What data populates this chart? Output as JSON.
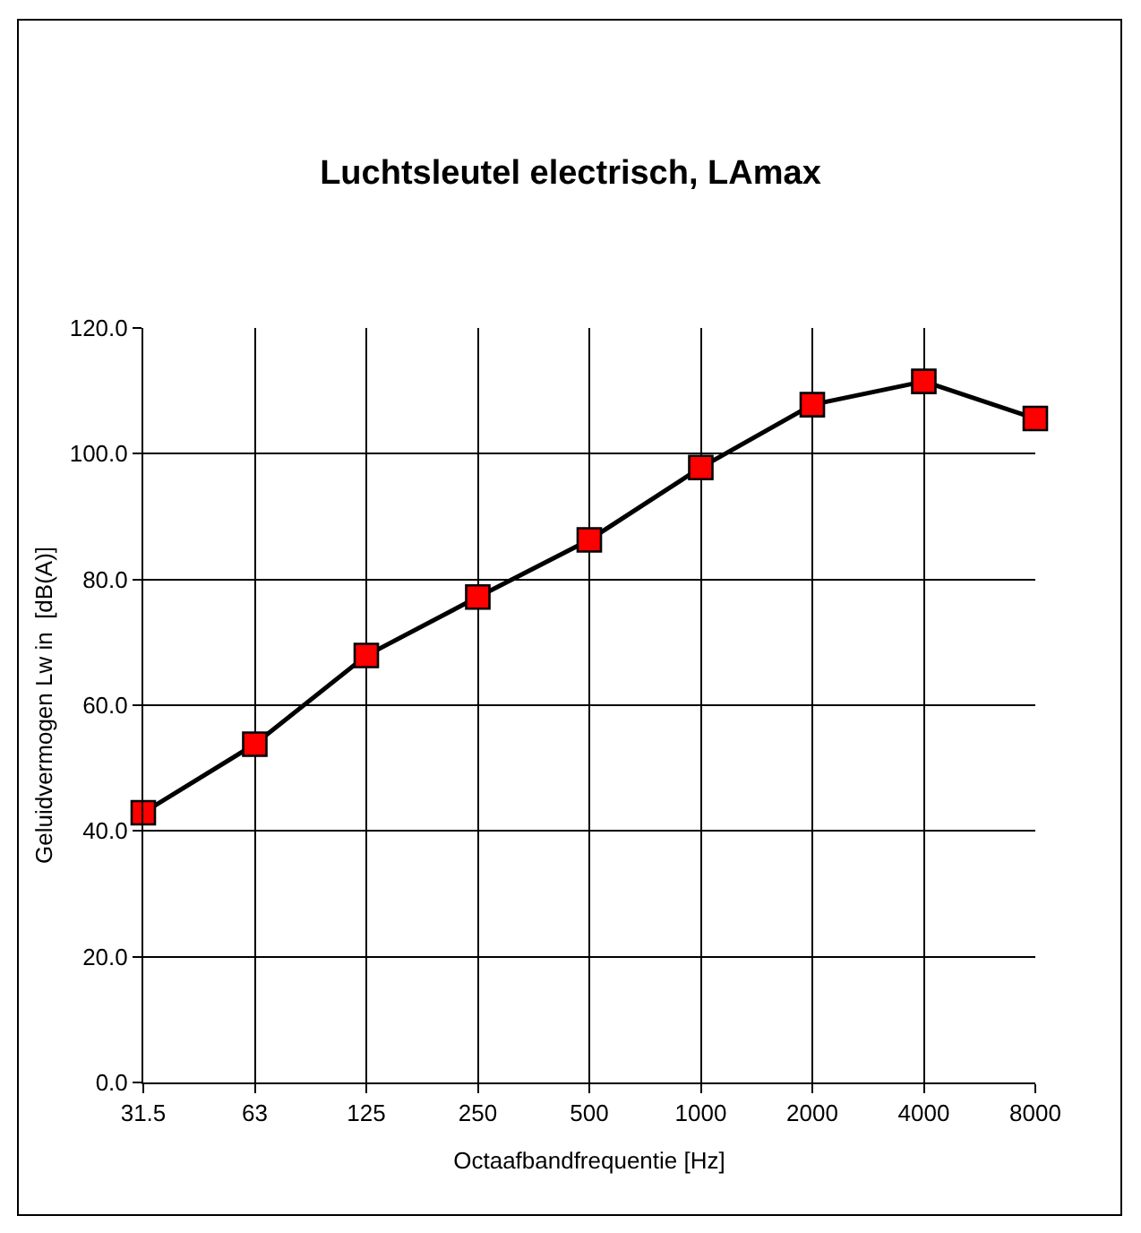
{
  "chart_data": {
    "type": "line",
    "title": "Luchtsleutel electrisch, LAmax",
    "xlabel": "Octaafbandfrequentie [Hz]",
    "ylabel": "Geluidvermogen Lw in  [dB(A)]",
    "categories": [
      "31.5",
      "63",
      "125",
      "250",
      "500",
      "1000",
      "2000",
      "4000",
      "8000"
    ],
    "series": [
      {
        "color": "#ff0000",
        "values": [
          42.9,
          53.8,
          67.9,
          77.2,
          86.3,
          97.8,
          107.8,
          111.5,
          105.6
        ]
      }
    ],
    "ylim": [
      0,
      120
    ],
    "yticks": [
      {
        "value": 0,
        "label": "0.0"
      },
      {
        "value": 20,
        "label": "20.0"
      },
      {
        "value": 40,
        "label": "40.0"
      },
      {
        "value": 60,
        "label": "60.0"
      },
      {
        "value": 80,
        "label": "80.0"
      },
      {
        "value": 100,
        "label": "100.0"
      },
      {
        "value": 120,
        "label": "120.0"
      }
    ],
    "grid": true,
    "legend": false,
    "marker": "square",
    "line_style": "solid"
  }
}
